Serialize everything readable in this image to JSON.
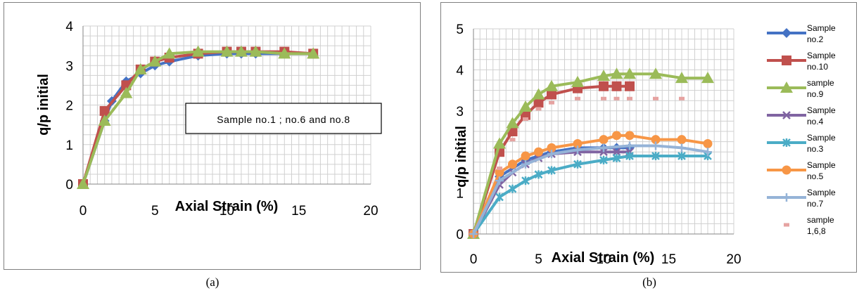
{
  "captions": [
    "(a)",
    "(b)"
  ],
  "chart_data": [
    {
      "type": "line",
      "xlabel": "Axial Strain (%)",
      "ylabel": "q/p initial",
      "xlim": [
        0,
        20
      ],
      "ylim": [
        0,
        4
      ],
      "x_ticks": [
        "0",
        "5",
        "10",
        "15",
        "20"
      ],
      "y_ticks": [
        "0",
        "1",
        "2",
        "3",
        "4"
      ],
      "grid": true,
      "annotation": "Sample no.1 ; no.6 and no.8",
      "series": [
        {
          "color": "#4472C4",
          "marker": "diamond",
          "x": [
            0,
            1.5,
            2,
            3,
            4,
            5,
            6,
            8,
            10,
            11,
            12,
            14,
            16
          ],
          "y": [
            0,
            1.6,
            2.1,
            2.6,
            2.8,
            3.0,
            3.1,
            3.25,
            3.3,
            3.3,
            3.3,
            3.3,
            3.3
          ]
        },
        {
          "color": "#C0504D",
          "marker": "square",
          "x": [
            0,
            1.5,
            3,
            4,
            5,
            6,
            8,
            10,
            11,
            12,
            14,
            16
          ],
          "y": [
            0,
            1.85,
            2.5,
            2.9,
            3.1,
            3.2,
            3.3,
            3.35,
            3.35,
            3.35,
            3.35,
            3.3
          ]
        },
        {
          "color": "#9BBB59",
          "marker": "triangle",
          "x": [
            0,
            1.5,
            3,
            4,
            5,
            6,
            8,
            10,
            11,
            12,
            14,
            16
          ],
          "y": [
            0,
            1.6,
            2.3,
            2.9,
            3.1,
            3.3,
            3.35,
            3.35,
            3.35,
            3.35,
            3.3,
            3.3
          ]
        }
      ]
    },
    {
      "type": "line",
      "xlabel": "Axial Strain (%)",
      "ylabel": "q/p initial",
      "xlim": [
        0,
        20
      ],
      "ylim": [
        0,
        5
      ],
      "x_ticks": [
        "0",
        "5",
        "10",
        "15",
        "20"
      ],
      "y_ticks": [
        "0",
        "1",
        "2",
        "3",
        "4",
        "5"
      ],
      "grid": true,
      "legend": "right",
      "series": [
        {
          "name": "Sample no.2",
          "color": "#4472C4",
          "marker": "diamond",
          "line": true,
          "x": [
            0,
            2,
            4,
            6,
            8,
            10,
            11,
            12
          ],
          "y": [
            0,
            1.4,
            1.8,
            2.0,
            2.1,
            2.1,
            2.1,
            2.1
          ]
        },
        {
          "name": "Sample no.10",
          "color": "#C0504D",
          "marker": "square",
          "line": true,
          "x": [
            0,
            2,
            3,
            4,
            5,
            6,
            8,
            10,
            11,
            12
          ],
          "y": [
            0,
            2.0,
            2.5,
            2.9,
            3.2,
            3.4,
            3.55,
            3.6,
            3.6,
            3.6
          ]
        },
        {
          "name": "sample no.9",
          "color": "#9BBB59",
          "marker": "triangle",
          "line": true,
          "x": [
            0,
            2,
            3,
            4,
            5,
            6,
            8,
            10,
            11,
            12,
            14,
            16,
            18
          ],
          "y": [
            0,
            2.2,
            2.7,
            3.1,
            3.4,
            3.6,
            3.7,
            3.85,
            3.9,
            3.9,
            3.9,
            3.8,
            3.8
          ]
        },
        {
          "name": "Sample no.4",
          "color": "#8064A2",
          "marker": "x",
          "line": true,
          "x": [
            0,
            2,
            3,
            4,
            5,
            6,
            8,
            10,
            11,
            12
          ],
          "y": [
            0,
            1.2,
            1.5,
            1.7,
            1.85,
            1.95,
            2.0,
            2.0,
            2.0,
            2.0
          ]
        },
        {
          "name": "Sample no.3",
          "color": "#4BACC6",
          "marker": "star",
          "line": true,
          "x": [
            0,
            2,
            3,
            4,
            5,
            6,
            8,
            10,
            11,
            12,
            14,
            16,
            18
          ],
          "y": [
            0,
            0.9,
            1.1,
            1.3,
            1.45,
            1.55,
            1.7,
            1.8,
            1.85,
            1.9,
            1.9,
            1.9,
            1.9
          ]
        },
        {
          "name": "Sample no.5",
          "color": "#F79646",
          "marker": "circle",
          "line": true,
          "x": [
            0,
            2,
            3,
            4,
            5,
            6,
            8,
            10,
            11,
            12,
            14,
            16,
            18
          ],
          "y": [
            0,
            1.5,
            1.7,
            1.9,
            2.0,
            2.1,
            2.2,
            2.3,
            2.4,
            2.4,
            2.3,
            2.3,
            2.2
          ]
        },
        {
          "name": "Sample no.7",
          "color": "#95B3D7",
          "marker": "plus",
          "line": true,
          "x": [
            0,
            2,
            4,
            6,
            8,
            10,
            12,
            14,
            16,
            18
          ],
          "y": [
            0,
            1.3,
            1.7,
            1.95,
            2.05,
            2.1,
            2.15,
            2.15,
            2.1,
            2.0
          ]
        },
        {
          "name": "sample 1,6,8",
          "color": "#E6A3A1",
          "marker": "dash",
          "line": false,
          "x": [
            2,
            3,
            4,
            5,
            6,
            8,
            10,
            11,
            12,
            14,
            16
          ],
          "y": [
            1.6,
            2.3,
            2.8,
            3.05,
            3.2,
            3.3,
            3.3,
            3.3,
            3.3,
            3.3,
            3.3
          ]
        }
      ]
    }
  ]
}
